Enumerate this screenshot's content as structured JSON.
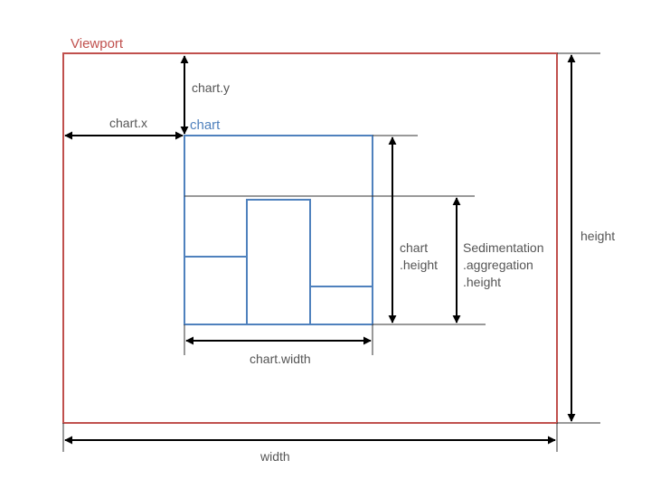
{
  "labels": {
    "viewport": "Viewport",
    "chart": "chart",
    "chart_x": "chart.x",
    "chart_y": "chart.y",
    "chart_width": "chart.width",
    "chart_height_1": "chart",
    "chart_height_2": ".height",
    "sed_1": "Sedimentation",
    "sed_2": ".aggregation",
    "sed_3": ".height",
    "height": "height",
    "width": "width"
  },
  "colors": {
    "viewport": "#c0504d",
    "chart": "#4f81bd",
    "arrows": "#000000",
    "guides": "#333333",
    "text": "#555555"
  }
}
